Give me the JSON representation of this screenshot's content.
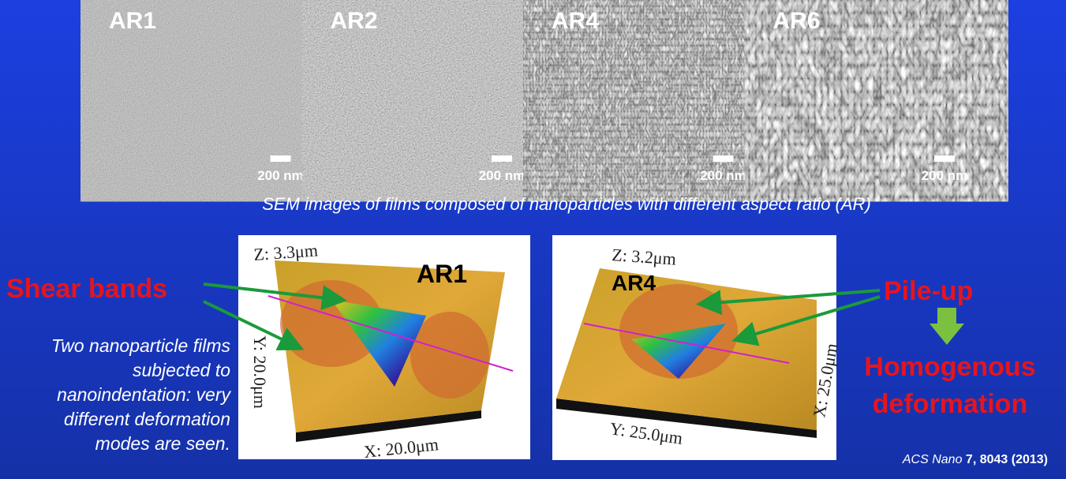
{
  "sem_images": [
    {
      "label": "AR1",
      "scale": "200 nm"
    },
    {
      "label": "AR2",
      "scale": "200 nm"
    },
    {
      "label": "AR4",
      "scale": "200 nm"
    },
    {
      "label": "AR6",
      "scale": "200 nm"
    }
  ],
  "sem_caption": "SEM images of films composed of nanoparticles with different aspect ratio (AR)",
  "afm_panels": [
    {
      "label": "AR1",
      "z": "Z: 3.3μm",
      "y": "Y: 20.0μm",
      "x": "X: 20.0μm"
    },
    {
      "label": "AR4",
      "z": "Z: 3.2μm",
      "x": "X: 25.0μm",
      "y": "Y: 25.0μm"
    }
  ],
  "left_annotation": "Shear bands",
  "description": [
    "Two nanoparticle films",
    "subjected to",
    "nanoindentation: very",
    "different deformation",
    "modes are seen."
  ],
  "right_annotation": "Pile-up",
  "result": [
    "Homogenous",
    "deformation"
  ],
  "citation": {
    "journal": "ACS Nano",
    "reference": "7, 8043 (2013)"
  }
}
